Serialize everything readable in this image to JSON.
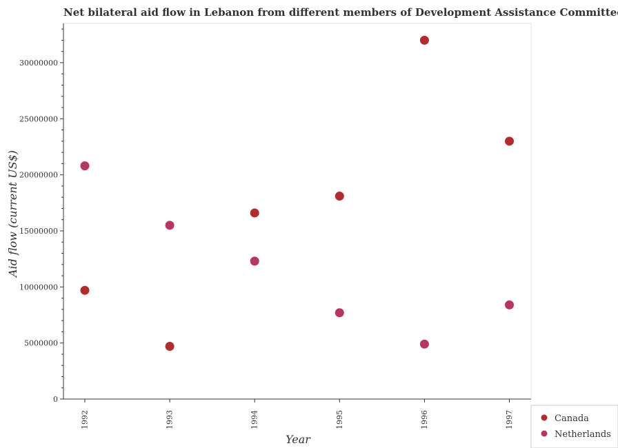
{
  "chart_data": {
    "type": "scatter",
    "title": "Net bilateral aid flow in Lebanon from different members of Development Assistance Committee",
    "xlabel": "Year",
    "ylabel": "Aid flow (current US$)",
    "x": [
      "1992",
      "1993",
      "1994",
      "1995",
      "1996",
      "1997"
    ],
    "yticks": [
      "0",
      "5000000",
      "10000000",
      "15000000",
      "20000000",
      "25000000",
      "30000000"
    ],
    "ylim": [
      0,
      33500000
    ],
    "grid": false,
    "legend_position": "bottom-right",
    "series": [
      {
        "name": "Canada",
        "color": "#b22c2c",
        "values": [
          9700000,
          4700000,
          16600000,
          18100000,
          32000000,
          23000000
        ]
      },
      {
        "name": "Netherlands",
        "color": "#b83563",
        "values": [
          20800000,
          15500000,
          12300000,
          7700000,
          4900000,
          8400000
        ]
      }
    ]
  }
}
